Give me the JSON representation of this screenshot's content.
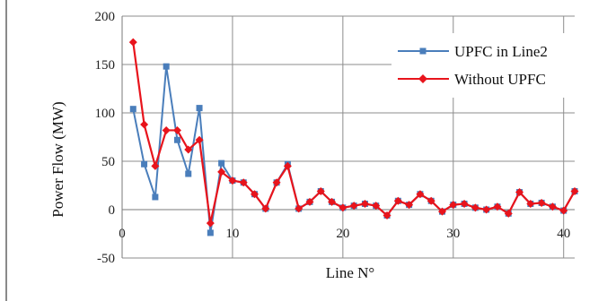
{
  "chart_data": {
    "type": "line",
    "xlabel": "Line N°",
    "ylabel": "Power Flow (MW)",
    "xlim": [
      0,
      41
    ],
    "ylim": [
      -50,
      200
    ],
    "x_ticks": [
      "0",
      "10",
      "20",
      "30",
      "40"
    ],
    "y_ticks": [
      "200",
      "150",
      "100",
      "50",
      "0",
      "-50"
    ],
    "grid": true,
    "legend_position": "top-right",
    "x": [
      1,
      2,
      3,
      4,
      5,
      6,
      7,
      8,
      9,
      10,
      11,
      12,
      13,
      14,
      15,
      16,
      17,
      18,
      19,
      20,
      21,
      22,
      23,
      24,
      25,
      26,
      27,
      28,
      29,
      30,
      31,
      32,
      33,
      34,
      35,
      36,
      37,
      38,
      39,
      40,
      41
    ],
    "series": [
      {
        "name": "UPFC in Line2",
        "color": "#4a7ebb",
        "marker": "square",
        "values": [
          104,
          47,
          13,
          148,
          72,
          37,
          105,
          -24,
          48,
          30,
          28,
          16,
          1,
          28,
          47,
          1,
          8,
          19,
          8,
          2,
          4,
          6,
          4,
          -6,
          9,
          5,
          16,
          9,
          -2,
          5,
          6,
          2,
          0,
          3,
          -4,
          18,
          6,
          7,
          3,
          -1,
          19
        ]
      },
      {
        "name": "Without UPFC",
        "color": "#e8141c",
        "marker": "diamond",
        "values": [
          173,
          88,
          45,
          82,
          82,
          62,
          72,
          -14,
          39,
          30,
          28,
          16,
          1,
          28,
          45,
          1,
          8,
          19,
          8,
          2,
          4,
          6,
          4,
          -6,
          9,
          5,
          16,
          9,
          -2,
          5,
          6,
          2,
          0,
          3,
          -4,
          18,
          6,
          7,
          3,
          -1,
          19
        ]
      }
    ]
  }
}
